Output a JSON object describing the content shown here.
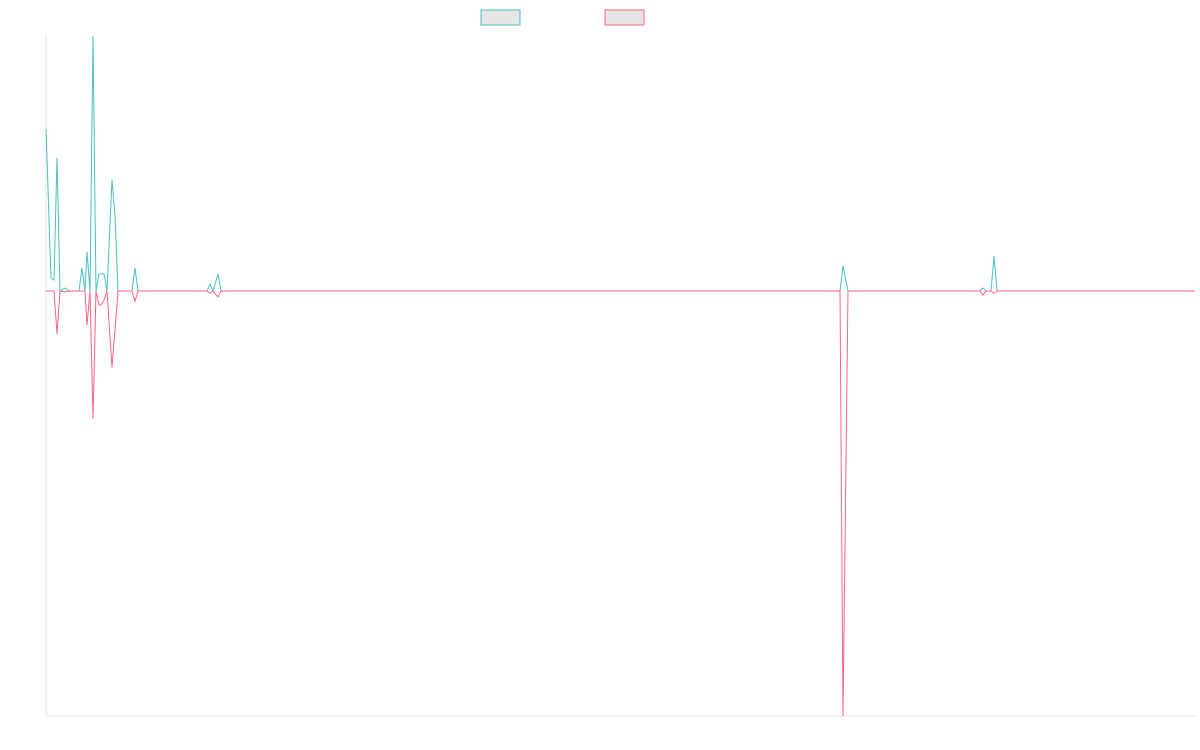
{
  "chart_data": {
    "type": "line",
    "x": [
      0,
      5,
      8,
      11,
      14,
      19,
      24,
      33,
      36,
      39,
      41,
      44,
      47,
      50,
      53,
      55,
      58,
      61,
      66,
      69,
      72,
      86,
      89,
      92,
      161,
      164,
      167,
      172,
      175,
      794,
      797,
      802,
      934,
      937,
      940,
      945,
      948,
      951,
      1149
    ],
    "xlim": [
      0,
      1149
    ],
    "ylim": [
      -100,
      60
    ],
    "series": [
      {
        "color": "#4bc0c0",
        "values": [
          38.1,
          3,
          2.6,
          31.3,
          0,
          0.7,
          0,
          0,
          5.4,
          0,
          9.2,
          0,
          60,
          0,
          4,
          4,
          4,
          0,
          26.1,
          17.9,
          0,
          0,
          5.4,
          0,
          0,
          1.6,
          0,
          4,
          0,
          0,
          5.9,
          0,
          0,
          0.7,
          0,
          0,
          8.2,
          0,
          0
        ]
      },
      {
        "color": "#ff6384",
        "values": [
          0,
          0,
          0,
          -10.1,
          0,
          -0.2,
          0,
          0,
          0,
          0,
          -8,
          0,
          -30.1,
          0,
          -3.3,
          -3.3,
          -2.1,
          0,
          -17.9,
          -9.2,
          0,
          0,
          -2.4,
          0,
          0,
          -0.5,
          0,
          -1.4,
          0,
          0,
          -100,
          0,
          0,
          -1,
          0,
          0,
          -0.5,
          0,
          0
        ]
      }
    ]
  }
}
